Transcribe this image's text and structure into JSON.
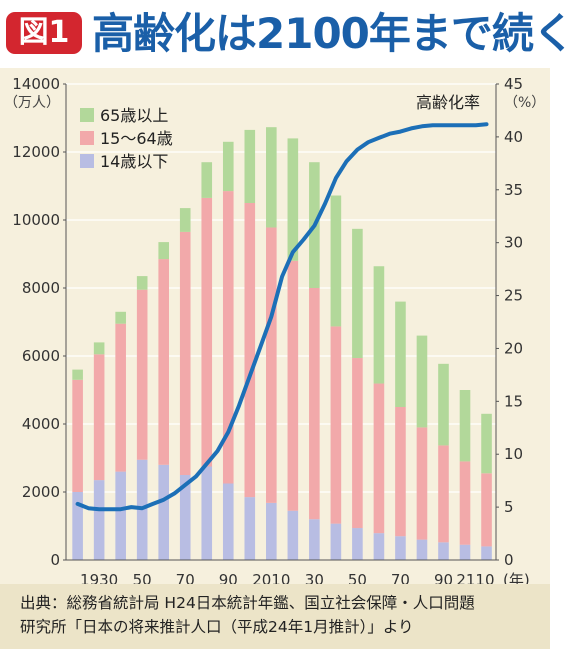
{
  "header": {
    "badge": "図1",
    "title": "高齢化は2100年まで続く"
  },
  "footer": {
    "line1": "出典：総務省統計局 H24日本統計年鑑、国立社会保障・人口問題",
    "line2": "研究所「日本の将来推計人口（平成24年1月推計）」より"
  },
  "colors": {
    "age65": "#b2d89a",
    "age15_64": "#f2a9aa",
    "age0_14": "#b8bde3",
    "rate_line": "#1c6fb7",
    "badge": "#d3262f",
    "title": "#1a5fa8"
  },
  "chart_data": {
    "type": "bar",
    "stacked": true,
    "x": [
      1920,
      1930,
      1940,
      1950,
      1960,
      1970,
      1980,
      1990,
      2000,
      2010,
      2020,
      2030,
      2040,
      2050,
      2060,
      2070,
      2080,
      2090,
      2100,
      2110
    ],
    "x_tick_labels": [
      "1930",
      "50",
      "70",
      "90",
      "2010",
      "30",
      "50",
      "70",
      "90",
      "2110"
    ],
    "x_tick_positions": [
      1930,
      1950,
      1970,
      1990,
      2010,
      2030,
      2050,
      2070,
      2090,
      2110
    ],
    "x_unit": "(年)",
    "series": [
      {
        "name": "14歳以下",
        "color": "#b8bde3",
        "values": [
          2000,
          2350,
          2600,
          2950,
          2800,
          2500,
          2750,
          2250,
          1850,
          1680,
          1450,
          1200,
          1070,
          940,
          790,
          700,
          600,
          520,
          450,
          400
        ]
      },
      {
        "name": "15〜64歳",
        "color": "#f2a9aa",
        "values": [
          3300,
          3700,
          4350,
          5000,
          6050,
          7150,
          7900,
          8600,
          8650,
          8100,
          7350,
          6800,
          5800,
          5000,
          4400,
          3800,
          3300,
          2850,
          2450,
          2150
        ]
      },
      {
        "name": "65歳以上",
        "color": "#b2d89a",
        "values": [
          300,
          350,
          350,
          400,
          500,
          700,
          1050,
          1450,
          2150,
          2950,
          3600,
          3700,
          3850,
          3800,
          3450,
          3100,
          2700,
          2400,
          2100,
          1750
        ]
      }
    ],
    "y_left": {
      "min": 0,
      "max": 14000,
      "ticks": [
        0,
        2000,
        4000,
        6000,
        8000,
        10000,
        12000,
        14000
      ],
      "unit": "（万人）"
    },
    "y_right": {
      "min": 0,
      "max": 45,
      "ticks": [
        0,
        5,
        10,
        15,
        20,
        25,
        30,
        35,
        40,
        45
      ],
      "unit": "（%）"
    },
    "line": {
      "name": "高齢化率",
      "color": "#1c6fb7",
      "x": [
        1920,
        1925,
        1930,
        1935,
        1940,
        1945,
        1950,
        1955,
        1960,
        1965,
        1970,
        1975,
        1980,
        1985,
        1990,
        1995,
        2000,
        2005,
        2010,
        2015,
        2020,
        2025,
        2030,
        2035,
        2040,
        2045,
        2050,
        2055,
        2060,
        2065,
        2070,
        2075,
        2080,
        2085,
        2090,
        2095,
        2100,
        2105,
        2110
      ],
      "values": [
        5.3,
        4.9,
        4.8,
        4.8,
        4.8,
        5.0,
        4.9,
        5.3,
        5.7,
        6.3,
        7.1,
        7.9,
        9.1,
        10.3,
        12.1,
        14.6,
        17.4,
        20.2,
        23.0,
        26.8,
        29.1,
        30.3,
        31.6,
        33.7,
        36.1,
        37.7,
        38.8,
        39.5,
        39.9,
        40.3,
        40.5,
        40.8,
        41.0,
        41.1,
        41.1,
        41.1,
        41.1,
        41.1,
        41.2
      ]
    },
    "legend": [
      "65歳以上",
      "15〜64歳",
      "14歳以下"
    ],
    "legend_position": "top-left"
  }
}
